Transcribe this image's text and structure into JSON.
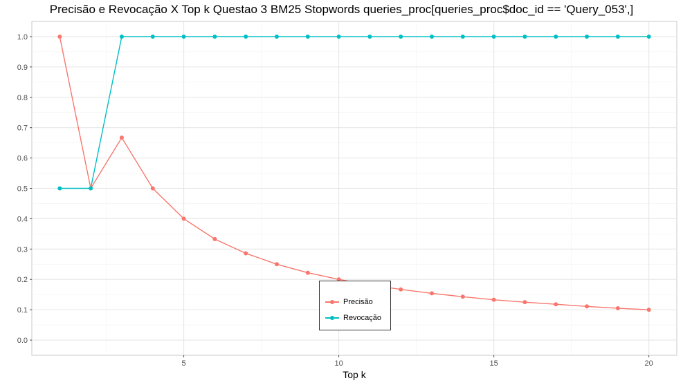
{
  "chart_data": {
    "type": "line",
    "title": "Precisão e Revocação X Top k Questao 3 BM25 Stopwords queries_proc[queries_proc$doc_id == 'Query_053',]",
    "xlabel": "Top k",
    "ylabel": "",
    "xlim": [
      0.1,
      20.9
    ],
    "ylim": [
      -0.05,
      1.05
    ],
    "x_ticks": [
      5,
      10,
      15,
      20
    ],
    "y_ticks": [
      0.0,
      0.1,
      0.2,
      0.3,
      0.4,
      0.5,
      0.6,
      0.7,
      0.8,
      0.9,
      1.0
    ],
    "x_tick_labels": [
      "5",
      "10",
      "15",
      "20"
    ],
    "y_tick_labels": [
      "0.0",
      "0.1",
      "0.2",
      "0.3",
      "0.4",
      "0.5",
      "0.6",
      "0.7",
      "0.8",
      "0.9",
      "1.0"
    ],
    "grid": true,
    "legend_position": "bottom-center",
    "x": [
      1,
      2,
      3,
      4,
      5,
      6,
      7,
      8,
      9,
      10,
      11,
      12,
      13,
      14,
      15,
      16,
      17,
      18,
      19,
      20
    ],
    "series": [
      {
        "name": "Precisão",
        "color": "#F8766D",
        "values": [
          1.0,
          0.5,
          0.667,
          0.5,
          0.4,
          0.333,
          0.286,
          0.25,
          0.222,
          0.2,
          0.182,
          0.167,
          0.154,
          0.143,
          0.133,
          0.125,
          0.118,
          0.111,
          0.105,
          0.1
        ]
      },
      {
        "name": "Revocação",
        "color": "#00BFC4",
        "values": [
          0.5,
          0.5,
          1.0,
          1.0,
          1.0,
          1.0,
          1.0,
          1.0,
          1.0,
          1.0,
          1.0,
          1.0,
          1.0,
          1.0,
          1.0,
          1.0,
          1.0,
          1.0,
          1.0,
          1.0
        ]
      }
    ]
  }
}
